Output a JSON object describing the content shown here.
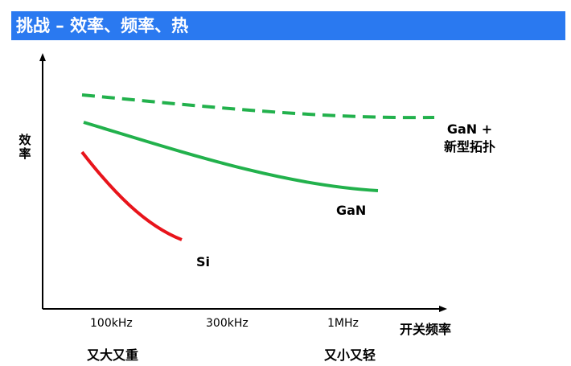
{
  "header": {
    "title": "挑战 – 效率、频率、热"
  },
  "diagram": {
    "y_axis_label": "效率",
    "x_axis_label": "开关频率",
    "x_ticks": [
      "100kHz",
      "300kHz",
      "1MHz"
    ],
    "bottom_notes": {
      "left": "又大又重",
      "right": "又小又轻"
    },
    "curves": {
      "gan_new_topology": {
        "label_line1": "GaN +",
        "label_line2": "新型拓扑",
        "color": "#22b14c",
        "style": "dashed"
      },
      "gan": {
        "label": "GaN",
        "color": "#22b14c",
        "style": "solid"
      },
      "si": {
        "label": "Si",
        "color": "#e8141b",
        "style": "solid"
      }
    }
  }
}
